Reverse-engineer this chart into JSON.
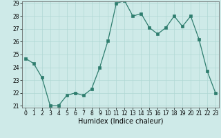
{
  "x": [
    0,
    1,
    2,
    3,
    4,
    5,
    6,
    7,
    8,
    9,
    10,
    11,
    12,
    13,
    14,
    15,
    16,
    17,
    18,
    19,
    20,
    21,
    22,
    23
  ],
  "y": [
    24.7,
    24.3,
    23.2,
    21.0,
    21.0,
    21.8,
    22.0,
    21.8,
    22.3,
    24.0,
    26.1,
    29.0,
    29.2,
    28.0,
    28.2,
    27.1,
    26.6,
    27.1,
    28.0,
    27.2,
    28.0,
    26.2,
    23.7,
    22.0
  ],
  "line_color": "#2e7d6e",
  "marker_color": "#2e7d6e",
  "bg_color": "#ceeae8",
  "grid_color": "#b0d8d4",
  "xlabel": "Humidex (Indice chaleur)",
  "ylim_min": 21,
  "ylim_max": 29,
  "xlim_min": 0,
  "xlim_max": 23,
  "yticks": [
    21,
    22,
    23,
    24,
    25,
    26,
    27,
    28,
    29
  ],
  "xticks": [
    0,
    1,
    2,
    3,
    4,
    5,
    6,
    7,
    8,
    9,
    10,
    11,
    12,
    13,
    14,
    15,
    16,
    17,
    18,
    19,
    20,
    21,
    22,
    23
  ],
  "tick_label_fontsize": 5.5,
  "xlabel_fontsize": 7.0
}
